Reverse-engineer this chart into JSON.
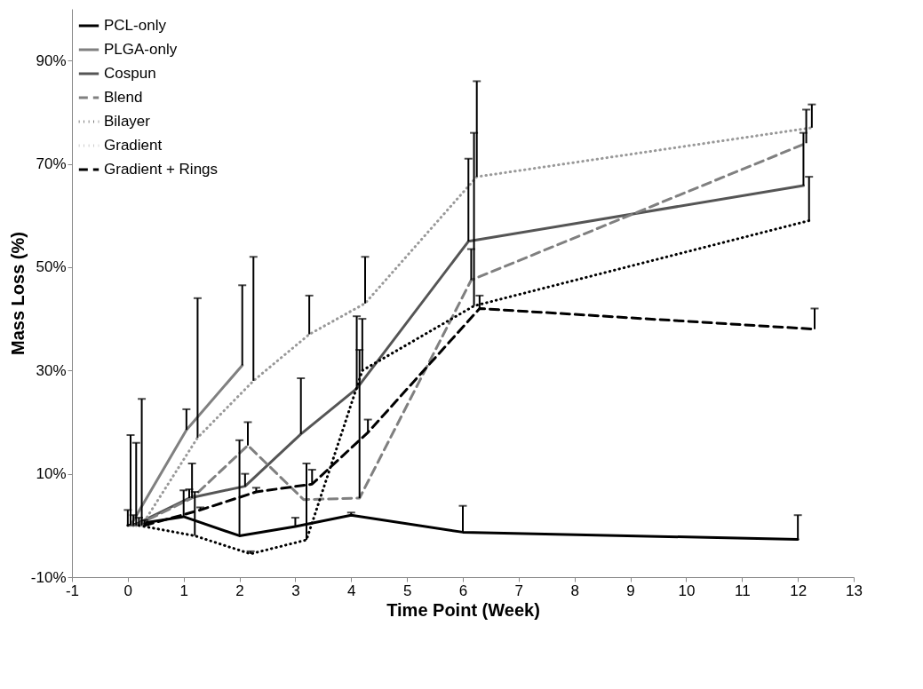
{
  "chart_data": {
    "type": "line",
    "xlabel": "Time Point (Week)",
    "ylabel": "Mass Loss (%)",
    "xlim": [
      -1,
      13
    ],
    "xticks": [
      -1,
      0,
      1,
      2,
      3,
      4,
      5,
      6,
      7,
      8,
      9,
      10,
      11,
      12,
      13
    ],
    "ylim": [
      -10,
      100
    ],
    "yticks": [
      {
        "value": -10,
        "label": "-10%"
      },
      {
        "value": 10,
        "label": "10%"
      },
      {
        "value": 30,
        "label": "30%"
      },
      {
        "value": 50,
        "label": "50%"
      },
      {
        "value": 70,
        "label": "70%"
      },
      {
        "value": 90,
        "label": "90%"
      }
    ],
    "grid": false,
    "legend": "top left",
    "marker": "none",
    "series": [
      {
        "name": "PCL-only",
        "color": "#000000",
        "line_style": "solid",
        "x": [
          0,
          1,
          2,
          3,
          4,
          6,
          12
        ],
        "values": [
          0,
          1.7,
          -2,
          -0.2,
          2,
          -1.3,
          -2.7
        ],
        "errors": [
          [
            0,
            3
          ],
          [
            1.7,
            6.8
          ],
          [
            -2,
            16.5
          ],
          [
            -0.2,
            1.5
          ],
          [
            2,
            2.5
          ],
          [
            -1.3,
            3.8
          ],
          [
            -2.7,
            2
          ]
        ]
      },
      {
        "name": "PLGA-only",
        "color": "#808080",
        "line_style": "solid",
        "x": [
          0.05,
          1.05,
          2.05
        ],
        "values": [
          0,
          18.5,
          31
        ],
        "errors": [
          [
            0,
            17.5
          ],
          [
            18.5,
            22.5
          ],
          [
            31,
            46.5
          ]
        ]
      },
      {
        "name": "Cospun",
        "color": "#555555",
        "line_style": "solid",
        "x": [
          0.1,
          1.1,
          2.1,
          3.1,
          4.1,
          6.1,
          12.1
        ],
        "values": [
          0,
          5.3,
          7.6,
          17.7,
          26.5,
          55,
          65.8
        ],
        "errors": [
          [
            0,
            2
          ],
          [
            5.3,
            7
          ],
          [
            7.6,
            10
          ],
          [
            17.7,
            28.5
          ],
          [
            26.5,
            40.5
          ],
          [
            55,
            71
          ],
          [
            65.8,
            76
          ]
        ]
      },
      {
        "name": "Blend",
        "color": "#808080",
        "line_style": "dashed",
        "x": [
          0.15,
          1.15,
          2.15,
          3.15,
          4.15,
          6.15,
          12.15
        ],
        "values": [
          0,
          5.3,
          15.5,
          5,
          5.3,
          47.5,
          74
        ],
        "errors": [
          [
            0,
            16
          ],
          [
            5.3,
            12
          ],
          [
            15.5,
            20
          ],
          null,
          [
            5.3,
            34
          ],
          [
            47.5,
            53.5
          ],
          [
            74,
            80.5
          ]
        ]
      },
      {
        "name": "Bilayer",
        "color": "#000000",
        "line_style": "dotted",
        "x": [
          0.2,
          1.2,
          2.2,
          3.2,
          4.2,
          6.2,
          12.2
        ],
        "values": [
          0,
          -2,
          -5.5,
          -2.8,
          30,
          42.5,
          59
        ],
        "errors": [
          [
            0,
            1.5
          ],
          [
            -2,
            6.5
          ],
          [
            -5.5,
            -5
          ],
          [
            -2.8,
            12
          ],
          [
            30,
            40
          ],
          [
            42.5,
            76
          ],
          [
            59,
            67.5
          ]
        ]
      },
      {
        "name": "Gradient",
        "color": "#999999",
        "line_style": "dotted",
        "x": [
          0.25,
          1.25,
          2.25,
          3.25,
          4.25,
          6.25,
          12.25
        ],
        "values": [
          0,
          17,
          28,
          37,
          43,
          67.5,
          77
        ],
        "errors": [
          [
            0,
            24.5
          ],
          [
            17,
            44
          ],
          [
            28,
            52
          ],
          [
            37,
            44.5
          ],
          [
            43,
            52
          ],
          [
            67.5,
            86
          ],
          [
            77,
            81.5
          ]
        ]
      },
      {
        "name": "Gradient + Rings",
        "color": "#000000",
        "line_style": "dashed",
        "x": [
          0.3,
          1.3,
          2.3,
          3.3,
          4.3,
          6.3,
          12.3
        ],
        "values": [
          0,
          3,
          6.5,
          8,
          18,
          42,
          38
        ],
        "errors": [
          [
            0,
            1
          ],
          [
            3,
            3.5
          ],
          [
            6.5,
            7.3
          ],
          [
            8,
            10.8
          ],
          [
            18,
            20.5
          ],
          [
            42,
            44.5
          ],
          [
            38,
            42
          ]
        ]
      }
    ]
  }
}
